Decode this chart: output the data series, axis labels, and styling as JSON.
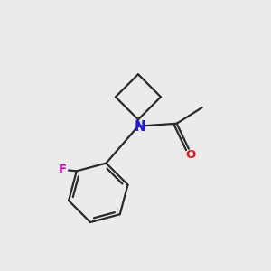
{
  "background_color": "#ebebeb",
  "bond_color": "#2a2a2a",
  "N_color": "#1a1aee",
  "O_color": "#ee1010",
  "F_color": "#cc00bb",
  "N_label": "N",
  "O_label": "O",
  "F_label": "F",
  "lw": 1.6
}
